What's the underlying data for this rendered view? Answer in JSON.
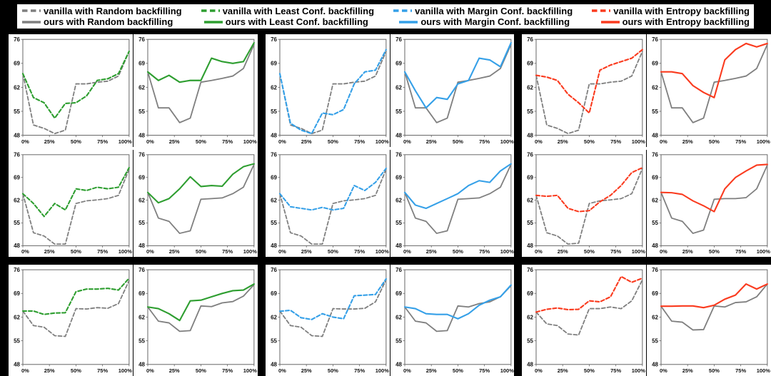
{
  "page": {
    "background": "#000000"
  },
  "legend": {
    "rows": [
      [
        {
          "name": "vanilla-random",
          "label": "vanilla with Random backfilling",
          "color": "gray",
          "style": "dashed"
        },
        {
          "name": "vanilla-least-conf",
          "label": "vanilla with Least Conf. backfilling",
          "color": "green",
          "style": "dashed"
        },
        {
          "name": "vanilla-margin-conf",
          "label": "vanilla with Margin Conf. backfilling",
          "color": "blue",
          "style": "dashed"
        },
        {
          "name": "vanilla-entropy",
          "label": "vanilla with Entropy backfilling",
          "color": "red",
          "style": "dashed"
        }
      ],
      [
        {
          "name": "ours-random",
          "label": "ours with Random backfilling",
          "color": "gray",
          "style": "solid"
        },
        {
          "name": "ours-least-conf",
          "label": "ours with Least Conf. backfilling",
          "color": "green",
          "style": "solid"
        },
        {
          "name": "ours-margin-conf",
          "label": "ours with Margin Conf. backfilling",
          "color": "blue",
          "style": "solid"
        },
        {
          "name": "ours-entropy",
          "label": "ours with Entropy backfilling",
          "color": "red",
          "style": "solid"
        }
      ]
    ]
  },
  "chart_data": {
    "type": "line",
    "grid": {
      "rows": 3,
      "cols": 6
    },
    "x_percent": [
      0,
      10,
      20,
      30,
      40,
      50,
      60,
      70,
      80,
      90,
      100
    ],
    "xtick_positions": [
      0,
      25,
      50,
      75,
      100
    ],
    "xtick_labels": [
      "0%",
      "25%",
      "50%",
      "75%",
      "100%"
    ],
    "ylim": [
      48,
      76
    ],
    "yticks": [
      48,
      55,
      62,
      69,
      76
    ],
    "colors": {
      "gray": "#7f7f7f",
      "green": "#2e9e30",
      "blue": "#35a0e8",
      "red": "#fa3b1f",
      "text": "#111111",
      "spine": "#666666",
      "panel": "#ffffff",
      "background": "#000000"
    },
    "groups": [
      {
        "name": "least-conf",
        "label": "Least Conf."
      },
      {
        "name": "margin-conf",
        "label": "Margin Conf."
      },
      {
        "name": "entropy",
        "label": "Entropy"
      }
    ],
    "charts": [
      {
        "name": "vanilla-least-conf",
        "row": 1,
        "col": 1,
        "variant": "vanilla",
        "style": "dashed",
        "accent": "green",
        "gray": [
          66,
          51,
          50,
          48.5,
          49.5,
          63,
          63,
          63.5,
          63.8,
          65.3,
          72.5
        ],
        "accent_values": [
          66,
          59,
          57.5,
          53,
          57.3,
          57.5,
          59.5,
          64,
          64.5,
          66,
          72.5
        ]
      },
      {
        "name": "ours-least-conf",
        "row": 1,
        "col": 2,
        "variant": "ours",
        "style": "solid",
        "accent": "green",
        "gray": [
          66.5,
          56,
          56,
          51.7,
          53,
          63.5,
          64,
          64.6,
          65.3,
          67.5,
          74.5
        ],
        "accent_values": [
          66.5,
          64,
          65.5,
          63.5,
          64,
          64,
          70.5,
          69.5,
          69,
          69.5,
          75
        ]
      },
      {
        "name": "vanilla-margin-conf",
        "row": 1,
        "col": 3,
        "variant": "vanilla",
        "style": "dashed",
        "accent": "blue",
        "gray": [
          66,
          51,
          50,
          48.5,
          49.5,
          63,
          63,
          63.5,
          63.8,
          65.3,
          72.5
        ],
        "accent_values": [
          66,
          51.5,
          49.5,
          48.5,
          54.5,
          54,
          55.5,
          63,
          66.5,
          67,
          73
        ]
      },
      {
        "name": "ours-margin-conf",
        "row": 1,
        "col": 4,
        "variant": "ours",
        "style": "solid",
        "accent": "blue",
        "gray": [
          66.5,
          56,
          56,
          51.7,
          53,
          63.5,
          64,
          64.6,
          65.3,
          67.5,
          74.5
        ],
        "accent_values": [
          66.5,
          61,
          56,
          59,
          58.5,
          63,
          64,
          70.5,
          70,
          68,
          75
        ]
      },
      {
        "name": "vanilla-entropy",
        "row": 1,
        "col": 5,
        "variant": "vanilla",
        "style": "dashed",
        "accent": "red",
        "gray": [
          65.5,
          51,
          50,
          48.5,
          49.5,
          63,
          63,
          63.5,
          63.8,
          65.3,
          72.5
        ],
        "accent_values": [
          65.5,
          65,
          64,
          60,
          57.5,
          54.5,
          67,
          68.5,
          69.5,
          70.5,
          73
        ]
      },
      {
        "name": "ours-entropy",
        "row": 1,
        "col": 6,
        "variant": "ours",
        "style": "solid",
        "accent": "red",
        "gray": [
          66.5,
          56,
          56,
          51.7,
          53,
          63.5,
          64,
          64.6,
          65.3,
          67.5,
          74.5
        ],
        "accent_values": [
          66.5,
          66.5,
          66,
          62.5,
          60.5,
          59,
          70,
          73,
          74.8,
          73.8,
          74.8
        ]
      },
      {
        "name": "vanilla-least-conf",
        "row": 2,
        "col": 1,
        "variant": "vanilla",
        "style": "dashed",
        "accent": "green",
        "gray": [
          64,
          52,
          51,
          48.5,
          48.5,
          61,
          61.8,
          62.1,
          62.5,
          63.5,
          71.5
        ],
        "accent_values": [
          64,
          61,
          57,
          61,
          59,
          65.5,
          65,
          66,
          65.5,
          66,
          72
        ]
      },
      {
        "name": "ours-least-conf",
        "row": 2,
        "col": 2,
        "variant": "ours",
        "style": "solid",
        "accent": "green",
        "gray": [
          64.4,
          56.5,
          55.5,
          51.8,
          52.6,
          62.3,
          62.5,
          62.7,
          64,
          66,
          73
        ],
        "accent_values": [
          64.4,
          61.2,
          62.5,
          65.5,
          69.2,
          66.2,
          66.5,
          66.3,
          70,
          72.3,
          73.2
        ]
      },
      {
        "name": "vanilla-margin-conf",
        "row": 2,
        "col": 3,
        "variant": "vanilla",
        "style": "dashed",
        "accent": "blue",
        "gray": [
          64,
          52,
          51,
          48.5,
          48.5,
          61,
          61.8,
          62.1,
          62.5,
          63.5,
          71.5
        ],
        "accent_values": [
          64,
          60,
          59.5,
          59,
          59.8,
          59,
          59.5,
          66.5,
          65,
          67.5,
          71.8
        ]
      },
      {
        "name": "ours-margin-conf",
        "row": 2,
        "col": 4,
        "variant": "ours",
        "style": "solid",
        "accent": "blue",
        "gray": [
          64.4,
          56.5,
          55.5,
          51.8,
          52.6,
          62.3,
          62.5,
          62.7,
          64,
          66,
          73
        ],
        "accent_values": [
          64.4,
          60.5,
          59.5,
          61,
          62.5,
          64,
          66.5,
          68,
          67.5,
          71,
          73.2
        ]
      },
      {
        "name": "vanilla-entropy",
        "row": 2,
        "col": 5,
        "variant": "vanilla",
        "style": "dashed",
        "accent": "red",
        "gray": [
          63.5,
          52,
          51,
          48.5,
          48.8,
          61,
          61.8,
          62.1,
          62.5,
          64,
          71.8
        ],
        "accent_values": [
          63.5,
          63.2,
          63.5,
          59.5,
          58.5,
          58.8,
          61.5,
          63.5,
          66.5,
          70.5,
          72
        ]
      },
      {
        "name": "ours-entropy",
        "row": 2,
        "col": 6,
        "variant": "ours",
        "style": "solid",
        "accent": "red",
        "gray": [
          64.4,
          56.5,
          55.5,
          51.8,
          52.8,
          62.3,
          62.5,
          62.5,
          62.8,
          65.5,
          72.8
        ],
        "accent_values": [
          64.4,
          64.3,
          63.8,
          61.8,
          60.3,
          58.5,
          65.5,
          69,
          71,
          72.8,
          73
        ]
      },
      {
        "name": "vanilla-least-conf",
        "row": 3,
        "col": 1,
        "variant": "vanilla",
        "style": "dashed",
        "accent": "green",
        "gray": [
          63.8,
          59.5,
          59,
          56.5,
          56.3,
          64.5,
          64.4,
          64.8,
          64.6,
          66,
          72.8
        ],
        "accent_values": [
          63.8,
          63.8,
          62.8,
          63.2,
          63.3,
          69.5,
          70.3,
          70.3,
          70.5,
          70,
          73.5
        ]
      },
      {
        "name": "ours-least-conf",
        "row": 3,
        "col": 2,
        "variant": "ours",
        "style": "solid",
        "accent": "green",
        "gray": [
          65,
          60.8,
          60.3,
          57.8,
          58,
          65.3,
          65.1,
          66.2,
          66.6,
          68.2,
          71.6
        ],
        "accent_values": [
          65,
          64.5,
          63,
          61,
          66.8,
          67,
          68,
          69,
          69.8,
          70,
          71.8
        ]
      },
      {
        "name": "vanilla-margin-conf",
        "row": 3,
        "col": 3,
        "variant": "vanilla",
        "style": "dashed",
        "accent": "blue",
        "gray": [
          63.8,
          59.5,
          59,
          56.5,
          56.3,
          64.5,
          64.4,
          64.4,
          64.6,
          66.5,
          73
        ],
        "accent_values": [
          63.7,
          64,
          61.8,
          61.3,
          63,
          62,
          61.5,
          68.3,
          68.5,
          68.7,
          73.3
        ]
      },
      {
        "name": "ours-margin-conf",
        "row": 3,
        "col": 4,
        "variant": "ours",
        "style": "solid",
        "accent": "blue",
        "gray": [
          65,
          60.8,
          60.3,
          57.8,
          58,
          65.3,
          65,
          66,
          66.5,
          68,
          71.3
        ],
        "accent_values": [
          65,
          64.5,
          63,
          62.8,
          62.8,
          61.5,
          63,
          65.5,
          67,
          68,
          71.5
        ]
      },
      {
        "name": "vanilla-entropy",
        "row": 3,
        "col": 5,
        "variant": "vanilla",
        "style": "dashed",
        "accent": "red",
        "gray": [
          63.5,
          60,
          59.5,
          57,
          56.7,
          64.5,
          64.5,
          65,
          64.5,
          66.8,
          73
        ],
        "accent_values": [
          63.5,
          64.3,
          64.7,
          64.2,
          64.3,
          66.8,
          66.5,
          68,
          74,
          72.3,
          73.5
        ]
      },
      {
        "name": "ours-entropy",
        "row": 3,
        "col": 6,
        "variant": "ours",
        "style": "solid",
        "accent": "red",
        "gray": [
          65.2,
          60.8,
          60.5,
          58.2,
          58.3,
          65.3,
          65,
          66.3,
          66.5,
          68,
          71.8
        ],
        "accent_values": [
          65.2,
          65.2,
          65.3,
          65.3,
          64.8,
          65.5,
          67.3,
          68.5,
          71.8,
          70.3,
          71.8
        ]
      }
    ]
  }
}
